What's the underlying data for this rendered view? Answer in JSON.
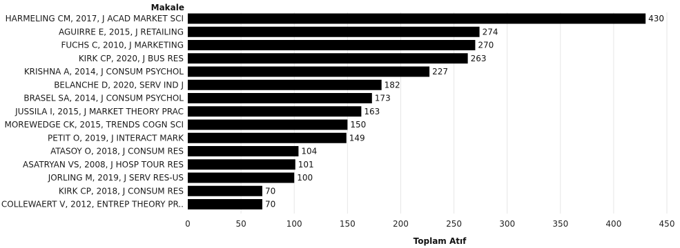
{
  "chart_data": {
    "type": "bar",
    "orientation": "horizontal",
    "dimension_label": "Makale",
    "xlabel": "Toplam Atıf",
    "xlim": [
      0,
      450
    ],
    "xticks": [
      0,
      50,
      100,
      150,
      200,
      250,
      300,
      350,
      400,
      450
    ],
    "grid": true,
    "legend": "none",
    "bar_color": "#000000",
    "categories": [
      "HARMELING CM, 2017, J ACAD MARKET SCI",
      "AGUIRRE E, 2015, J RETAILING",
      "FUCHS C, 2010, J MARKETING",
      "KIRK CP, 2020, J BUS RES",
      "KRISHNA A, 2014, J CONSUM PSYCHOL",
      "BELANCHE D, 2020, SERV IND J",
      "BRASEL SA, 2014, J CONSUM PSYCHOL",
      "JUSSILA I, 2015, J MARKET THEORY PRAC",
      "MOREWEDGE CK, 2015, TRENDS COGN SCI",
      "PETIT O, 2019, J INTERACT MARK",
      "ATASOY O, 2018, J CONSUM RES",
      "ASATRYAN VS, 2008, J HOSP TOUR RES",
      "JORLING M, 2019, J SERV RES-US",
      "KIRK CP, 2018, J CONSUM RES",
      "COLLEWAERT V, 2012, ENTREP THEORY PR.."
    ],
    "values": [
      430,
      274,
      270,
      263,
      227,
      182,
      173,
      163,
      150,
      149,
      104,
      101,
      100,
      70,
      70
    ]
  }
}
